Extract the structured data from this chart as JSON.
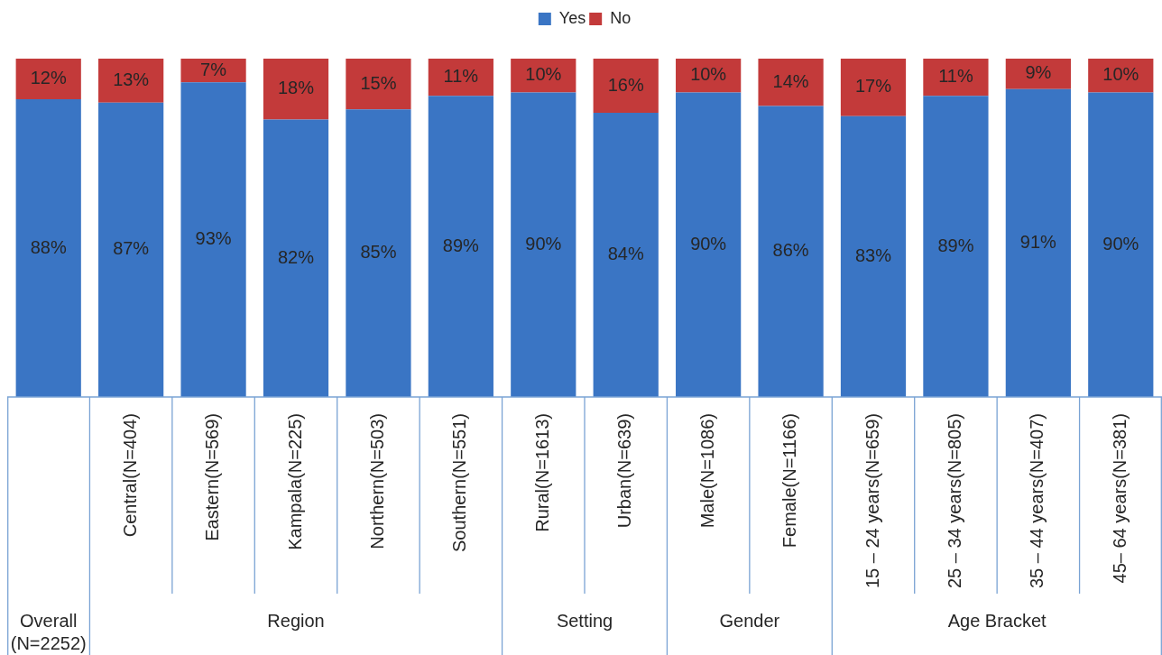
{
  "chart_data": {
    "type": "bar",
    "stacked": true,
    "legend": "top",
    "tick_labels": "x",
    "categories": [
      null,
      "Central(N=404)",
      "Eastern(N=569)",
      "Kampala(N=225)",
      "Northern(N=503)",
      "Southern(N=551)",
      "Rural(N=1613)",
      "Urban(N=639)",
      "Male(N=1086)",
      "Female(N=1166)",
      "15 – 24 years(N=659)",
      "25 – 34 years(N=805)",
      "35 – 44 years(N=407)",
      "45– 64 years(N=381)"
    ],
    "series": [
      {
        "name": "Yes",
        "color": "#3a75c4",
        "values": [
          88,
          87,
          93,
          82,
          85,
          89,
          90,
          84,
          90,
          86,
          83,
          89,
          91,
          90
        ],
        "value_labels": [
          "88%",
          "87%",
          "93%",
          "82%",
          "85%",
          "89%",
          "90%",
          "84%",
          "90%",
          "86%",
          "83%",
          "89%",
          "91%",
          "90%"
        ]
      },
      {
        "name": "No",
        "color": "#c33a3a",
        "values": [
          12,
          13,
          7,
          18,
          15,
          11,
          10,
          16,
          10,
          14,
          17,
          11,
          9,
          10
        ],
        "value_labels": [
          "12%",
          "13%",
          "7%",
          "18%",
          "15%",
          "11%",
          "10%",
          "16%",
          "10%",
          "14%",
          "17%",
          "11%",
          "9%",
          "10%"
        ]
      }
    ],
    "annotations": [
      "Overall (N=2252)",
      "Region",
      "Setting",
      "Gender",
      "Age Bracket"
    ]
  }
}
